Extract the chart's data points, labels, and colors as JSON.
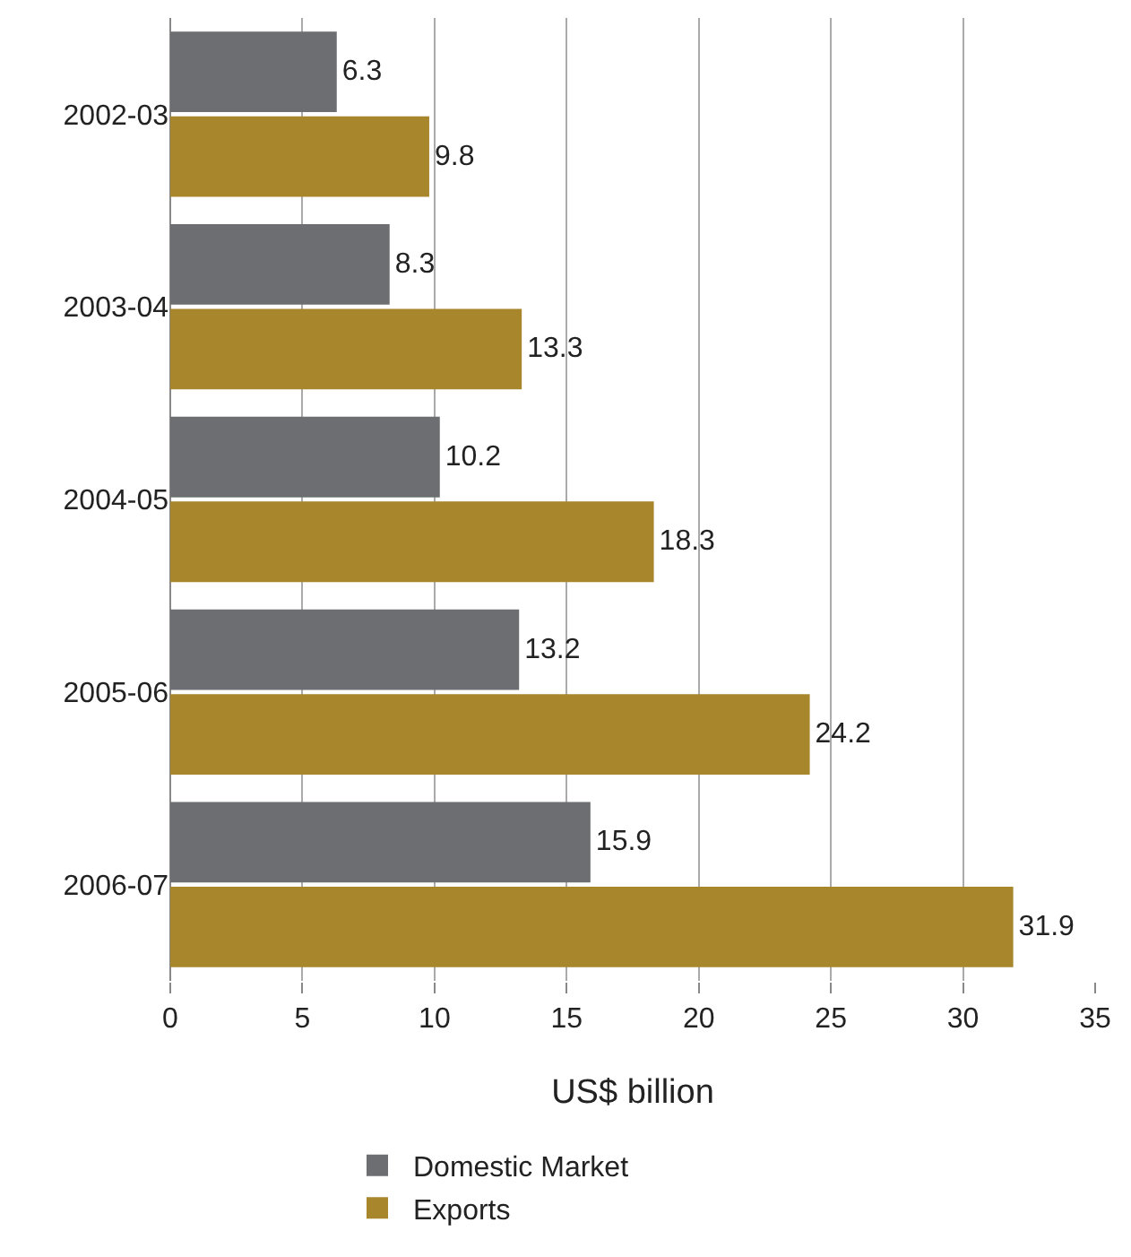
{
  "chart_data": {
    "type": "bar",
    "orientation": "horizontal",
    "xlabel": "US$ billion",
    "categories": [
      "2002-03",
      "2003-04",
      "2004-05",
      "2005-06",
      "2006-07"
    ],
    "series": [
      {
        "name": "Domestic Market",
        "color": "#6d6e71",
        "values": [
          6.3,
          8.3,
          10.2,
          13.2,
          15.9
        ]
      },
      {
        "name": "Exports",
        "color": "#a8862c",
        "values": [
          9.8,
          13.3,
          18.3,
          24.2,
          31.9
        ]
      }
    ],
    "xlim": [
      0,
      35
    ],
    "xticks": [
      0,
      5,
      10,
      15,
      20,
      25,
      30,
      35
    ],
    "grid": "x",
    "legend": "bottom",
    "data_labels": true
  }
}
